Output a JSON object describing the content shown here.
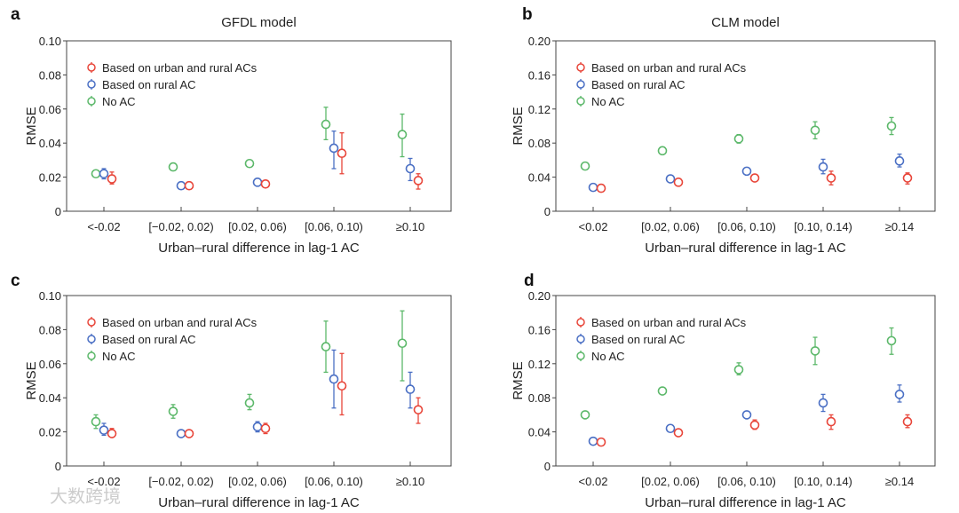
{
  "watermark": "大数跨境",
  "colors": {
    "urban_rural": "#e8463a",
    "rural": "#4a6fc4",
    "no_ac": "#5cb86a"
  },
  "chart_data": [
    {
      "panel": "a",
      "type": "scatter",
      "title": "GFDL model",
      "xlabel": "Urban–rural difference in lag-1 AC",
      "ylabel": "RMSE",
      "ylim": [
        0,
        0.1
      ],
      "yticks": [
        "0",
        "0.02",
        "0.04",
        "0.06",
        "0.08",
        "0.10"
      ],
      "ytick_values": [
        0,
        0.02,
        0.04,
        0.06,
        0.08,
        0.1
      ],
      "categories": [
        "<-0.02",
        "[−0.02, 0.02)",
        "[0.02, 0.06)",
        "[0.06, 0.10)",
        "≥0.10"
      ],
      "legend": [
        "Based on urban and rural ACs",
        "Based on rural AC",
        "No AC"
      ],
      "series": [
        {
          "name": "No AC",
          "key": "no_ac",
          "values": [
            0.022,
            0.026,
            0.028,
            0.051,
            0.045
          ],
          "low": [
            0.02,
            0.024,
            0.026,
            0.042,
            0.032
          ],
          "high": [
            0.024,
            0.028,
            0.03,
            0.061,
            0.057
          ]
        },
        {
          "name": "Based on rural AC",
          "key": "rural",
          "values": [
            0.022,
            0.015,
            0.017,
            0.037,
            0.025
          ],
          "low": [
            0.019,
            0.013,
            0.015,
            0.025,
            0.018
          ],
          "high": [
            0.025,
            0.017,
            0.019,
            0.047,
            0.031
          ]
        },
        {
          "name": "Based on urban and rural ACs",
          "key": "urban_rural",
          "values": [
            0.019,
            0.015,
            0.016,
            0.034,
            0.018
          ],
          "low": [
            0.016,
            0.013,
            0.014,
            0.022,
            0.013
          ],
          "high": [
            0.023,
            0.017,
            0.018,
            0.046,
            0.022
          ]
        }
      ]
    },
    {
      "panel": "b",
      "type": "scatter",
      "title": "CLM model",
      "xlabel": "Urban–rural difference in lag-1 AC",
      "ylabel": "RMSE",
      "ylim": [
        0,
        0.2
      ],
      "yticks": [
        "0",
        "0.04",
        "0.08",
        "0.12",
        "0.16",
        "0.20"
      ],
      "ytick_values": [
        0,
        0.04,
        0.08,
        0.12,
        0.16,
        0.2
      ],
      "categories": [
        "<0.02",
        "[0.02, 0.06)",
        "[0.06, 0.10)",
        "[0.10, 0.14)",
        "≥0.14"
      ],
      "legend": [
        "Based on urban and rural ACs",
        "Based on rural AC",
        "No AC"
      ],
      "series": [
        {
          "name": "No AC",
          "key": "no_ac",
          "values": [
            0.053,
            0.071,
            0.085,
            0.095,
            0.1
          ],
          "low": [
            0.052,
            0.069,
            0.08,
            0.085,
            0.09
          ],
          "high": [
            0.055,
            0.073,
            0.09,
            0.105,
            0.11
          ]
        },
        {
          "name": "Based on rural AC",
          "key": "rural",
          "values": [
            0.028,
            0.038,
            0.047,
            0.052,
            0.059
          ],
          "low": [
            0.026,
            0.036,
            0.043,
            0.044,
            0.052
          ],
          "high": [
            0.03,
            0.04,
            0.051,
            0.061,
            0.067
          ]
        },
        {
          "name": "Based on urban and rural ACs",
          "key": "urban_rural",
          "values": [
            0.027,
            0.034,
            0.039,
            0.039,
            0.039
          ],
          "low": [
            0.025,
            0.032,
            0.035,
            0.031,
            0.032
          ],
          "high": [
            0.029,
            0.036,
            0.043,
            0.047,
            0.045
          ]
        }
      ]
    },
    {
      "panel": "c",
      "type": "scatter",
      "title": "",
      "xlabel": "Urban–rural difference in lag-1 AC",
      "ylabel": "RMSE",
      "ylim": [
        0,
        0.1
      ],
      "yticks": [
        "0",
        "0.02",
        "0.04",
        "0.06",
        "0.08",
        "0.10"
      ],
      "ytick_values": [
        0,
        0.02,
        0.04,
        0.06,
        0.08,
        0.1
      ],
      "categories": [
        "<-0.02",
        "[−0.02, 0.02)",
        "[0.02, 0.06)",
        "[0.06, 0.10)",
        "≥0.10"
      ],
      "legend": [
        "Based on urban and rural ACs",
        "Based on rural AC",
        "No AC"
      ],
      "series": [
        {
          "name": "No AC",
          "key": "no_ac",
          "values": [
            0.026,
            0.032,
            0.037,
            0.07,
            0.072
          ],
          "low": [
            0.022,
            0.028,
            0.033,
            0.055,
            0.05
          ],
          "high": [
            0.03,
            0.036,
            0.042,
            0.085,
            0.091
          ]
        },
        {
          "name": "Based on rural AC",
          "key": "rural",
          "values": [
            0.021,
            0.019,
            0.023,
            0.051,
            0.045
          ],
          "low": [
            0.018,
            0.017,
            0.02,
            0.034,
            0.034
          ],
          "high": [
            0.025,
            0.021,
            0.026,
            0.068,
            0.055
          ]
        },
        {
          "name": "Based on urban and rural ACs",
          "key": "urban_rural",
          "values": [
            0.019,
            0.019,
            0.022,
            0.047,
            0.033
          ],
          "low": [
            0.017,
            0.017,
            0.019,
            0.03,
            0.025
          ],
          "high": [
            0.022,
            0.021,
            0.025,
            0.066,
            0.04
          ]
        }
      ]
    },
    {
      "panel": "d",
      "type": "scatter",
      "title": "",
      "xlabel": "Urban–rural difference in lag-1 AC",
      "ylabel": "RMSE",
      "ylim": [
        0,
        0.2
      ],
      "yticks": [
        "0",
        "0.04",
        "0.08",
        "0.12",
        "0.16",
        "0.20"
      ],
      "ytick_values": [
        0,
        0.04,
        0.08,
        0.12,
        0.16,
        0.2
      ],
      "categories": [
        "<0.02",
        "[0.02, 0.06)",
        "[0.06, 0.10)",
        "[0.10, 0.14)",
        "≥0.14"
      ],
      "legend": [
        "Based on urban and rural ACs",
        "Based on rural AC",
        "No AC"
      ],
      "series": [
        {
          "name": "No AC",
          "key": "no_ac",
          "values": [
            0.06,
            0.088,
            0.113,
            0.135,
            0.147
          ],
          "low": [
            0.058,
            0.084,
            0.107,
            0.119,
            0.131
          ],
          "high": [
            0.062,
            0.092,
            0.121,
            0.151,
            0.162
          ]
        },
        {
          "name": "Based on rural AC",
          "key": "rural",
          "values": [
            0.029,
            0.044,
            0.06,
            0.074,
            0.084
          ],
          "low": [
            0.027,
            0.041,
            0.056,
            0.064,
            0.075
          ],
          "high": [
            0.031,
            0.047,
            0.064,
            0.084,
            0.095
          ]
        },
        {
          "name": "Based on urban and rural ACs",
          "key": "urban_rural",
          "values": [
            0.028,
            0.039,
            0.048,
            0.052,
            0.052
          ],
          "low": [
            0.026,
            0.036,
            0.043,
            0.043,
            0.045
          ],
          "high": [
            0.03,
            0.042,
            0.054,
            0.06,
            0.06
          ]
        }
      ]
    }
  ]
}
